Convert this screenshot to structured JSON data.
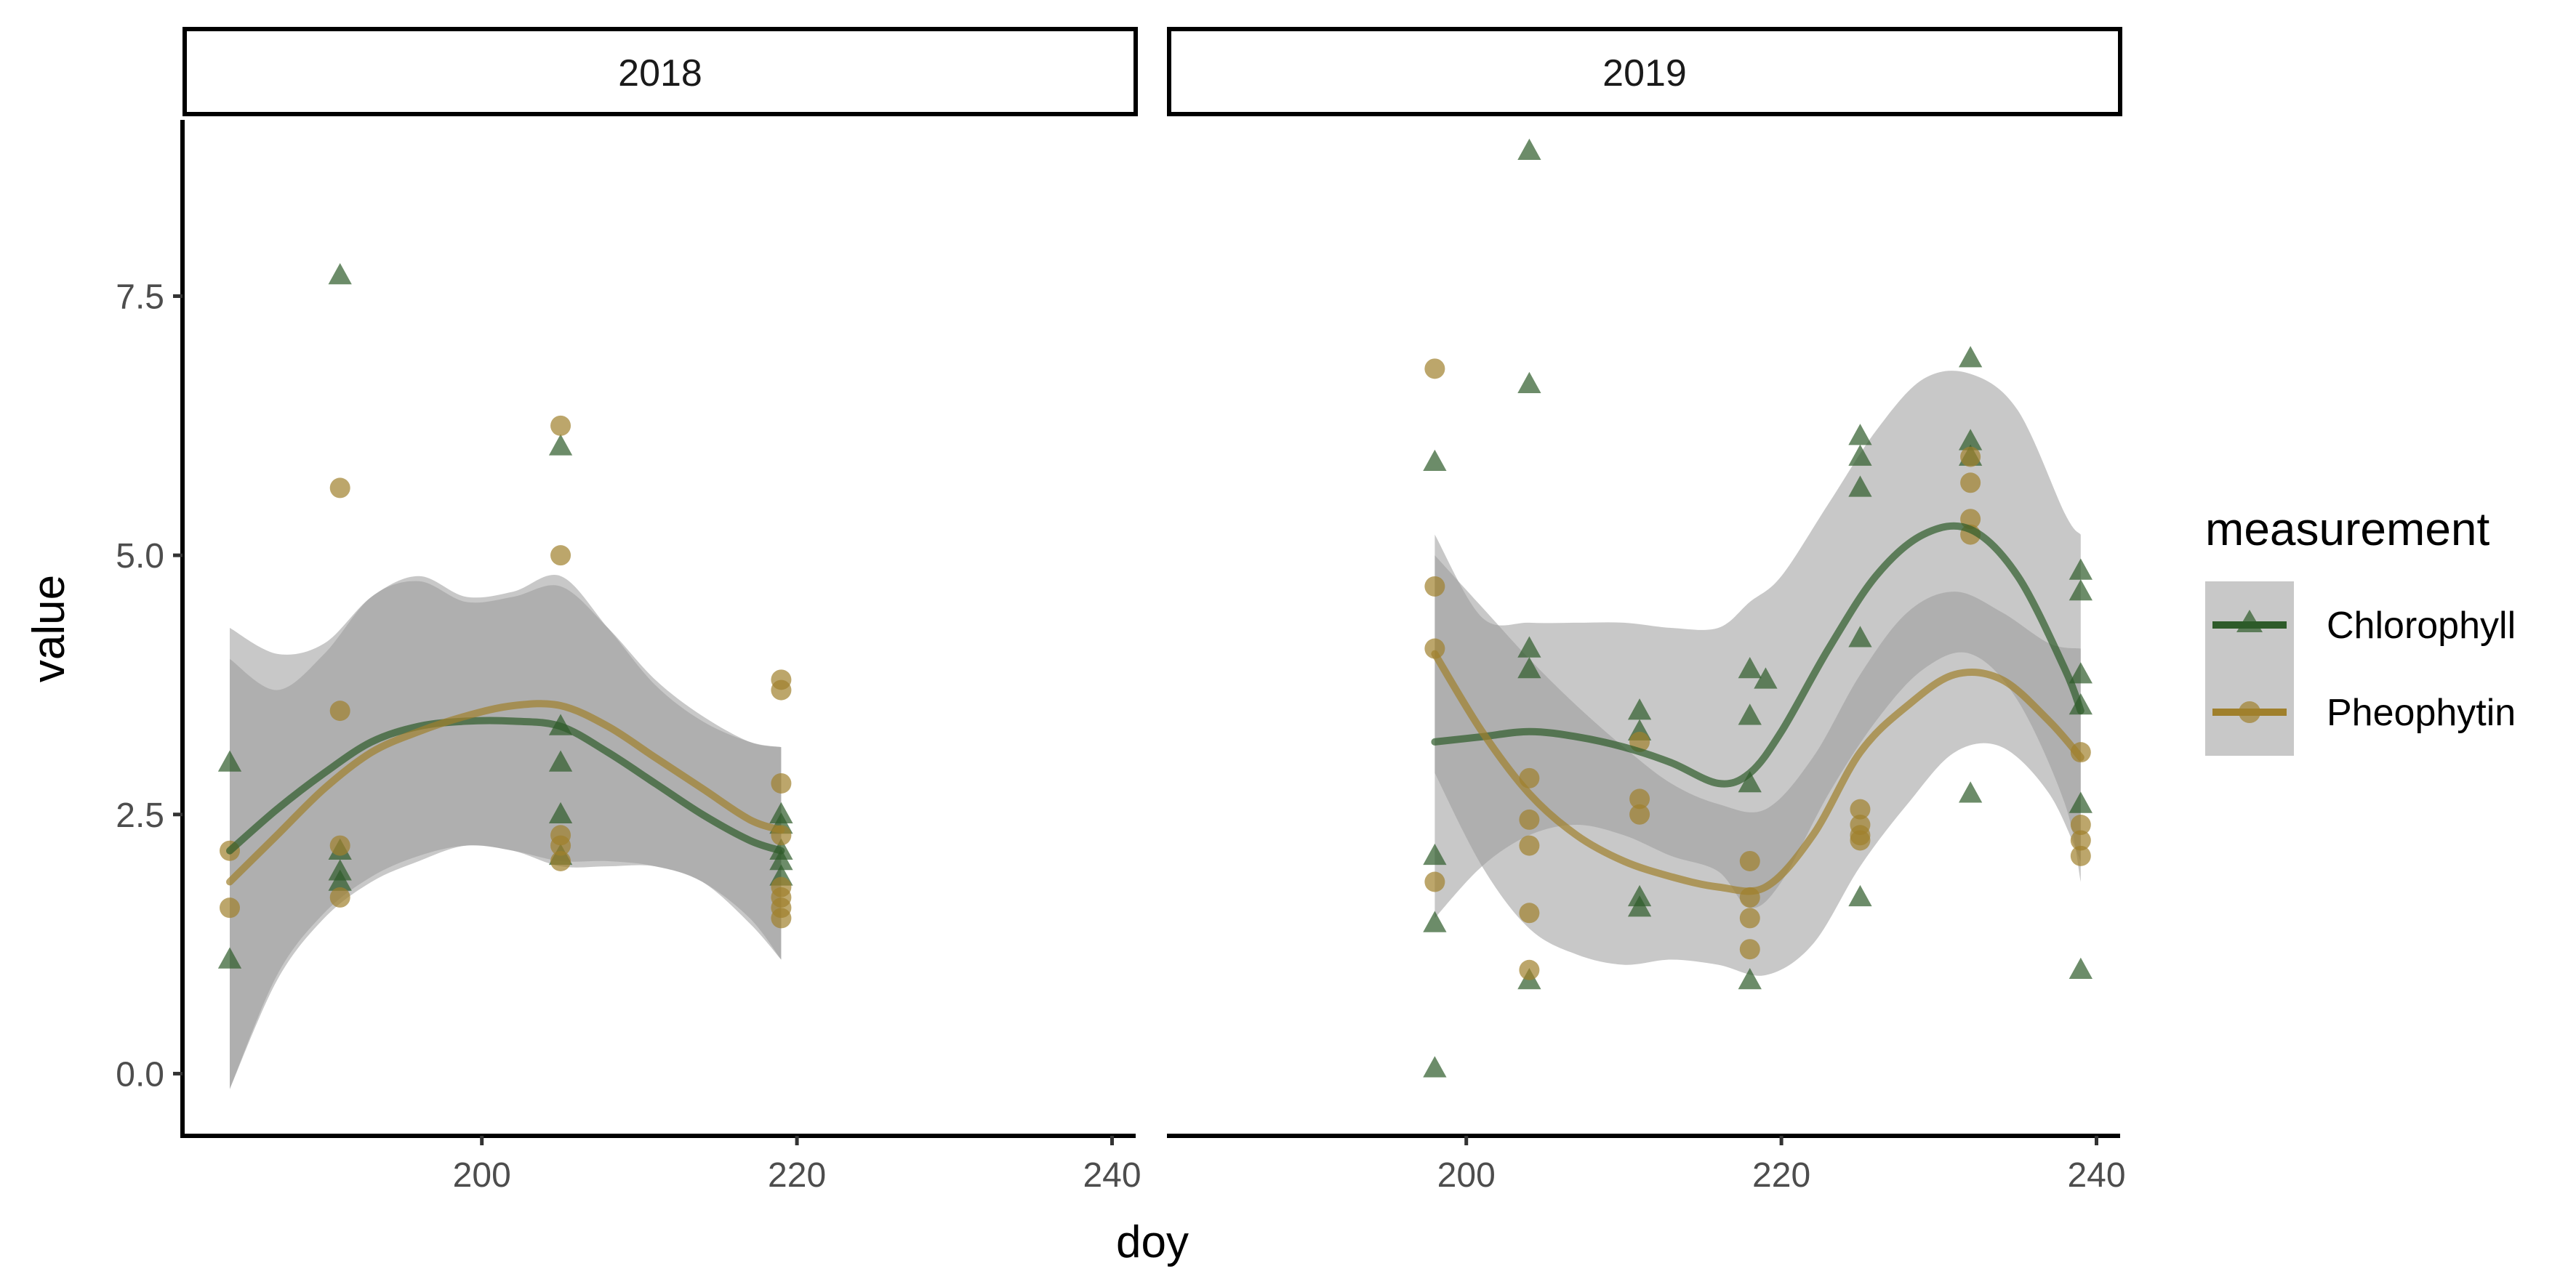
{
  "chart_data": {
    "type": "scatter",
    "title": "",
    "xlabel": "doy",
    "ylabel": "value",
    "xlim": [
      181,
      241.5
    ],
    "ylim": [
      -0.6,
      9.2
    ],
    "x_ticks": [
      200,
      220,
      240
    ],
    "y_ticks": [
      0.0,
      2.5,
      5.0,
      7.5
    ],
    "x_tick_labels": [
      "200",
      "220",
      "240"
    ],
    "y_tick_labels": [
      "0.0",
      "2.5",
      "5.0",
      "7.5"
    ],
    "grid": false,
    "legend": {
      "title": "measurement",
      "position": "right",
      "entries": [
        {
          "label": "Chlorophyll",
          "color": "#2e5b2a",
          "marker": "triangle"
        },
        {
          "label": "Pheophytin",
          "color": "#a0802c",
          "marker": "circle"
        }
      ]
    },
    "colors": {
      "chlorophyll": "#2e5b2a",
      "pheophytin": "#a0802c",
      "ribbon": "#9a9a9a"
    },
    "panels": [
      {
        "strip_label": "2018",
        "points": {
          "Chlorophyll": [
            [
              184,
              3.0
            ],
            [
              184,
              1.1
            ],
            [
              191,
              7.7
            ],
            [
              191,
              1.95
            ],
            [
              191,
              1.85
            ],
            [
              191,
              2.15
            ],
            [
              205,
              6.05
            ],
            [
              205,
              3.35
            ],
            [
              205,
              3.0
            ],
            [
              205,
              2.5
            ],
            [
              205,
              2.1
            ],
            [
              219,
              2.5
            ],
            [
              219,
              2.4
            ],
            [
              219,
              2.15
            ],
            [
              219,
              2.05
            ],
            [
              219,
              1.9
            ]
          ],
          "Pheophytin": [
            [
              184,
              2.15
            ],
            [
              184,
              1.6
            ],
            [
              191,
              5.65
            ],
            [
              191,
              3.5
            ],
            [
              191,
              2.2
            ],
            [
              191,
              1.7
            ],
            [
              205,
              6.25
            ],
            [
              205,
              5.0
            ],
            [
              205,
              2.3
            ],
            [
              205,
              2.2
            ],
            [
              205,
              2.05
            ],
            [
              219,
              3.8
            ],
            [
              219,
              3.7
            ],
            [
              219,
              2.8
            ],
            [
              219,
              2.3
            ],
            [
              219,
              1.8
            ],
            [
              219,
              1.7
            ],
            [
              219,
              1.6
            ],
            [
              219,
              1.5
            ]
          ]
        },
        "smooth": {
          "Chlorophyll": {
            "x": [
              184,
              187,
              190,
              193,
              196,
              199,
              202,
              205,
              208,
              211,
              214,
              217,
              219
            ],
            "y": [
              2.15,
              2.55,
              2.9,
              3.2,
              3.35,
              3.4,
              3.4,
              3.35,
              3.1,
              2.8,
              2.5,
              2.25,
              2.15
            ],
            "lower": [
              -0.15,
              0.9,
              1.5,
              1.85,
              2.05,
              2.2,
              2.15,
              2.05,
              2.05,
              2.0,
              1.85,
              1.45,
              1.1
            ],
            "upper": [
              4.3,
              4.05,
              4.15,
              4.6,
              4.8,
              4.6,
              4.65,
              4.8,
              4.3,
              3.75,
              3.4,
              3.2,
              3.15
            ]
          },
          "Pheophytin": {
            "x": [
              184,
              187,
              190,
              193,
              196,
              199,
              202,
              205,
              208,
              211,
              214,
              217,
              219
            ],
            "y": [
              1.85,
              2.3,
              2.75,
              3.1,
              3.3,
              3.45,
              3.55,
              3.55,
              3.35,
              3.05,
              2.75,
              2.45,
              2.35
            ],
            "lower": [
              -0.15,
              0.95,
              1.55,
              1.9,
              2.1,
              2.2,
              2.15,
              2.0,
              2.0,
              2.0,
              1.85,
              1.5,
              1.1
            ],
            "upper": [
              4.0,
              3.7,
              4.05,
              4.6,
              4.75,
              4.55,
              4.6,
              4.7,
              4.3,
              3.8,
              3.45,
              3.2,
              3.15
            ]
          }
        }
      },
      {
        "strip_label": "2019",
        "points": {
          "Chlorophyll": [
            [
              198,
              5.9
            ],
            [
              198,
              2.1
            ],
            [
              198,
              1.45
            ],
            [
              198,
              0.05
            ],
            [
              204,
              8.9
            ],
            [
              204,
              6.65
            ],
            [
              204,
              4.1
            ],
            [
              204,
              3.9
            ],
            [
              204,
              0.9
            ],
            [
              211,
              3.5
            ],
            [
              211,
              3.3
            ],
            [
              211,
              1.7
            ],
            [
              211,
              1.6
            ],
            [
              218,
              3.9
            ],
            [
              218,
              3.45
            ],
            [
              218,
              2.8
            ],
            [
              218,
              0.9
            ],
            [
              219,
              3.8
            ],
            [
              225,
              6.15
            ],
            [
              225,
              5.95
            ],
            [
              225,
              5.65
            ],
            [
              225,
              4.2
            ],
            [
              225,
              1.7
            ],
            [
              232,
              6.9
            ],
            [
              232,
              6.1
            ],
            [
              232,
              5.95
            ],
            [
              232,
              2.7
            ],
            [
              239,
              4.85
            ],
            [
              239,
              4.65
            ],
            [
              239,
              3.85
            ],
            [
              239,
              3.55
            ],
            [
              239,
              2.6
            ],
            [
              239,
              1.0
            ]
          ],
          "Pheophytin": [
            [
              198,
              6.8
            ],
            [
              198,
              4.7
            ],
            [
              198,
              4.1
            ],
            [
              198,
              1.85
            ],
            [
              204,
              2.85
            ],
            [
              204,
              2.45
            ],
            [
              204,
              2.2
            ],
            [
              204,
              1.55
            ],
            [
              204,
              1.0
            ],
            [
              211,
              2.65
            ],
            [
              211,
              2.5
            ],
            [
              211,
              3.2
            ],
            [
              218,
              2.05
            ],
            [
              218,
              1.7
            ],
            [
              218,
              1.5
            ],
            [
              218,
              1.2
            ],
            [
              225,
              2.55
            ],
            [
              225,
              2.4
            ],
            [
              225,
              2.3
            ],
            [
              225,
              2.25
            ],
            [
              232,
              5.95
            ],
            [
              232,
              5.7
            ],
            [
              232,
              5.35
            ],
            [
              232,
              5.2
            ],
            [
              239,
              3.1
            ],
            [
              239,
              2.4
            ],
            [
              239,
              2.25
            ],
            [
              239,
              2.1
            ]
          ]
        },
        "smooth": {
          "Chlorophyll": {
            "x": [
              198,
              201,
              204,
              207,
              210,
              213,
              216,
              218,
              220,
              223,
              226,
              229,
              232,
              235,
              238,
              239
            ],
            "y": [
              3.2,
              3.25,
              3.3,
              3.25,
              3.15,
              3.0,
              2.8,
              2.9,
              3.3,
              4.1,
              4.8,
              5.2,
              5.25,
              4.8,
              3.9,
              3.5
            ],
            "lower": [
              1.5,
              2.0,
              2.3,
              2.4,
              2.3,
              2.1,
              1.95,
              1.6,
              1.85,
              2.7,
              3.4,
              3.9,
              4.05,
              3.6,
              2.6,
              1.85
            ],
            "upper": [
              5.2,
              4.4,
              4.35,
              4.35,
              4.35,
              4.3,
              4.3,
              4.55,
              4.8,
              5.5,
              6.2,
              6.7,
              6.75,
              6.4,
              5.4,
              5.2
            ]
          },
          "Pheophytin": {
            "x": [
              198,
              201,
              204,
              207,
              210,
              213,
              216,
              219,
              222,
              225,
              228,
              231,
              234,
              237,
              239
            ],
            "y": [
              4.05,
              3.3,
              2.7,
              2.3,
              2.05,
              1.9,
              1.8,
              1.8,
              2.3,
              3.1,
              3.55,
              3.85,
              3.8,
              3.4,
              3.05
            ],
            "lower": [
              2.9,
              2.0,
              1.4,
              1.15,
              1.05,
              1.1,
              1.05,
              0.95,
              1.25,
              2.0,
              2.6,
              3.1,
              3.15,
              2.7,
              2.05
            ],
            "upper": [
              5.0,
              4.5,
              4.0,
              3.55,
              3.15,
              2.8,
              2.6,
              2.55,
              3.05,
              3.85,
              4.45,
              4.65,
              4.45,
              4.15,
              4.1
            ]
          }
        }
      }
    ]
  }
}
